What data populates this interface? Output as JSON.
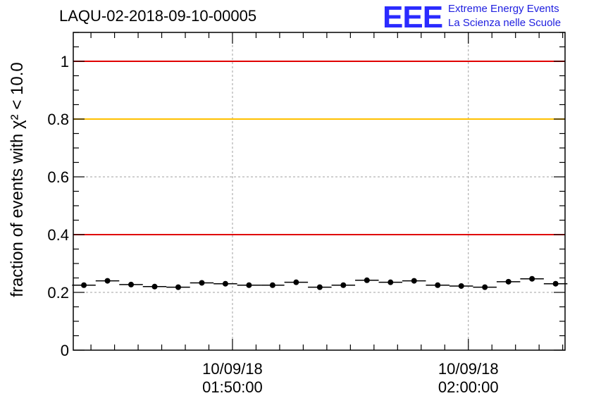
{
  "header": {
    "title": "LAQU-02-2018-09-10-00005",
    "logo_text": "EEE",
    "logo_line1": "Extreme Energy Events",
    "logo_line2": "La Scienza nelle Scuole"
  },
  "chart_data": {
    "type": "scatter",
    "ylabel": "fraction of events with χ² < 10.0",
    "ylim": [
      0,
      1.1
    ],
    "yticks": [
      0,
      0.2,
      0.4,
      0.6,
      0.8,
      1
    ],
    "ytick_labels": [
      "0",
      "0.2",
      "0.4",
      "0.6",
      "0.8",
      "1"
    ],
    "xticks": [
      {
        "date": "10/09/18",
        "time": "01:50:00",
        "minute": 110
      },
      {
        "date": "10/09/18",
        "time": "02:00:00",
        "minute": 120
      }
    ],
    "xlim_minutes": [
      103.25,
      124.1
    ],
    "reference_lines": [
      {
        "y": 1.0,
        "color": "#e00000"
      },
      {
        "y": 0.8,
        "color": "#ffc000"
      },
      {
        "y": 0.4,
        "color": "#e00000"
      }
    ],
    "grid": true,
    "series": [
      {
        "marker_color": "#000000",
        "x_minutes": [
          103.7,
          104.7,
          105.7,
          106.7,
          107.7,
          108.7,
          109.7,
          110.7,
          111.7,
          112.7,
          113.7,
          114.7,
          115.7,
          116.7,
          117.7,
          118.7,
          119.7,
          120.7,
          121.7,
          122.7,
          123.7
        ],
        "y": [
          0.225,
          0.24,
          0.227,
          0.22,
          0.218,
          0.233,
          0.23,
          0.225,
          0.225,
          0.235,
          0.218,
          0.225,
          0.242,
          0.235,
          0.24,
          0.225,
          0.222,
          0.218,
          0.237,
          0.247,
          0.23
        ],
        "bin_half_width_minutes": 0.5
      }
    ]
  }
}
